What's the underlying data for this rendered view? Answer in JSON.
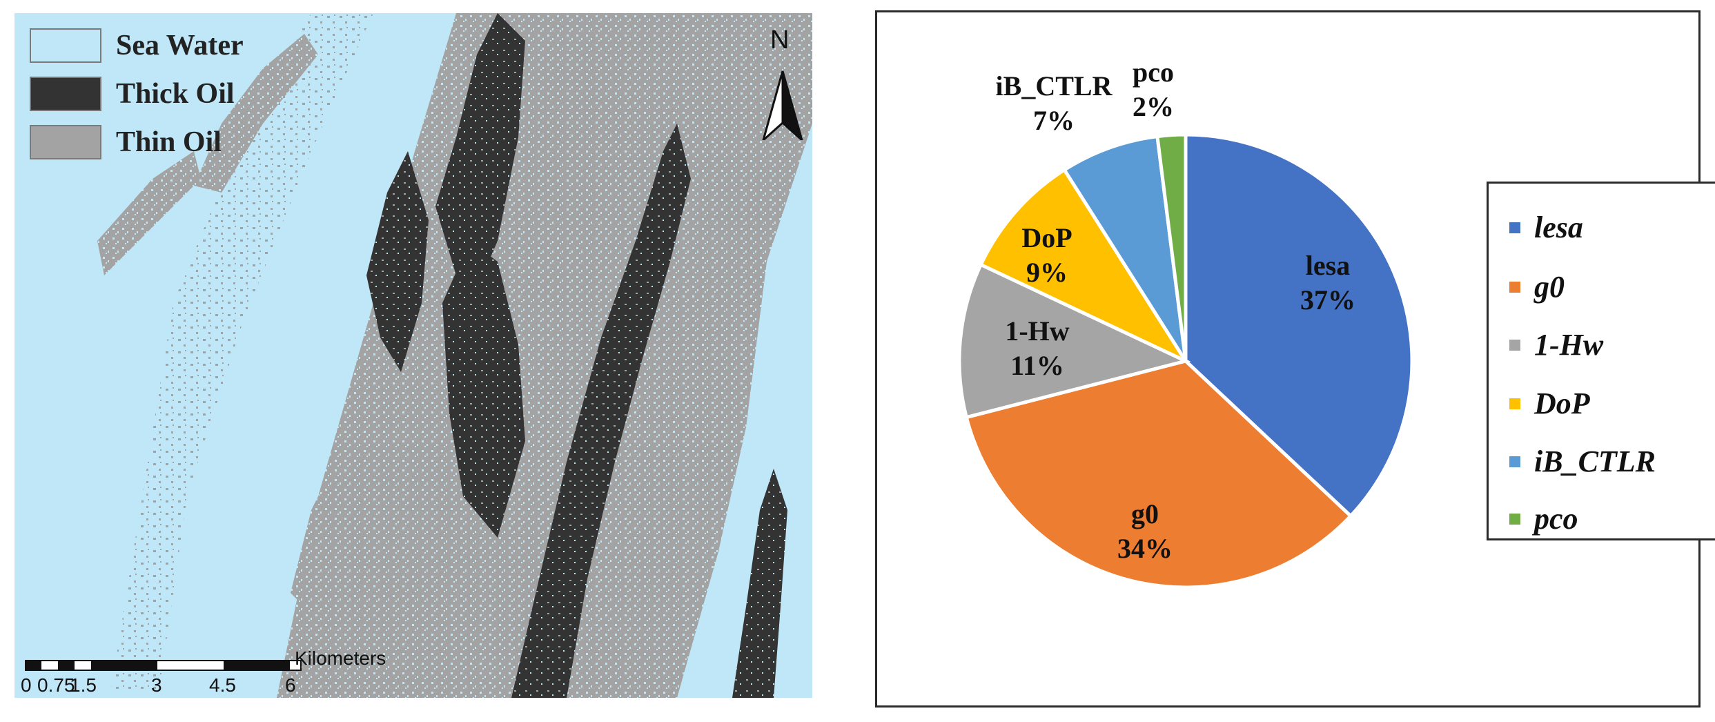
{
  "map": {
    "legend": [
      {
        "label": "Sea Water",
        "color": "#bfe7f8"
      },
      {
        "label": "Thick Oil",
        "color": "#333333"
      },
      {
        "label": "Thin Oil",
        "color": "#a3a3a3"
      }
    ],
    "north_label": "N",
    "scale": {
      "unit": "Kilometers",
      "ticks": [
        "0",
        "0.75",
        "1.5",
        "3",
        "4.5",
        "6"
      ]
    }
  },
  "chart_data": {
    "type": "pie",
    "title": "",
    "slices": [
      {
        "name": "lesa",
        "value": 37,
        "label": "37%",
        "color": "#4472c4"
      },
      {
        "name": "g0",
        "value": 34,
        "label": "34%",
        "color": "#ed7d31"
      },
      {
        "name": "1-Hw",
        "value": 11,
        "label": "11%",
        "color": "#a5a5a5"
      },
      {
        "name": "DoP",
        "value": 9,
        "label": "9%",
        "color": "#ffc000"
      },
      {
        "name": "iB_CTLR",
        "value": 7,
        "label": "7%",
        "color": "#5b9bd5"
      },
      {
        "name": "pco",
        "value": 2,
        "label": "2%",
        "color": "#70ad47"
      }
    ],
    "legend_position": "right"
  }
}
